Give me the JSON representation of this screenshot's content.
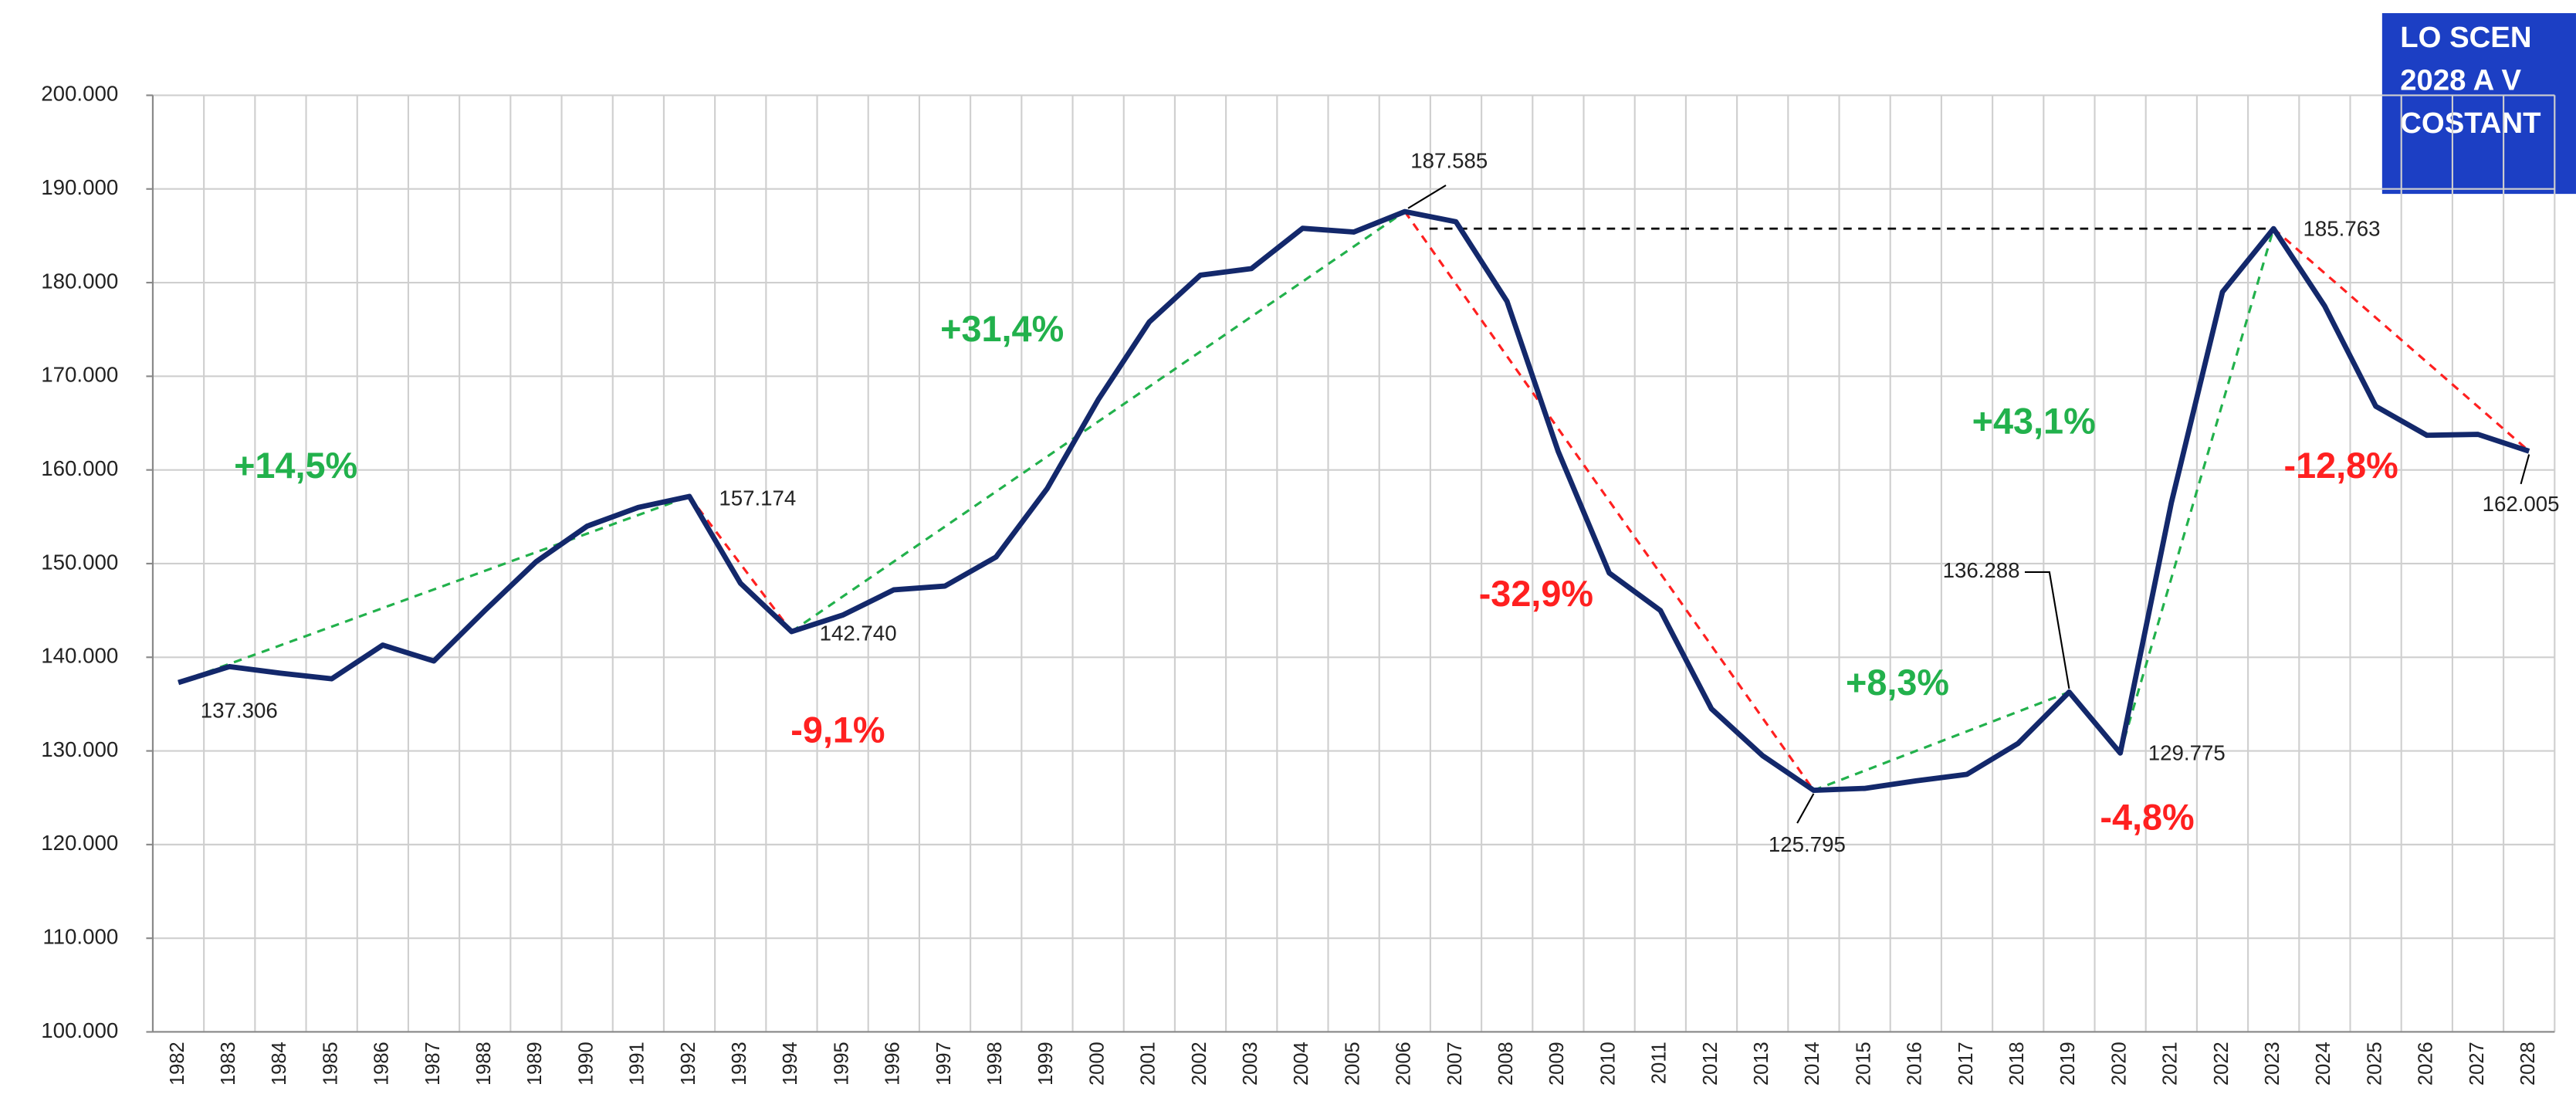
{
  "chart_data": {
    "type": "line",
    "title_lines": [
      "LO SCEN",
      "2028 A V",
      "COSTANT"
    ],
    "title_box_color": "#1c3fc4",
    "categories": [
      "1982",
      "1983",
      "1984",
      "1985",
      "1986",
      "1987",
      "1988",
      "1989",
      "1990",
      "1991",
      "1992",
      "1993",
      "1994",
      "1995",
      "1996",
      "1997",
      "1998",
      "1999",
      "2000",
      "2001",
      "2002",
      "2003",
      "2004",
      "2005",
      "2006",
      "2007",
      "2008",
      "2009",
      "2010",
      "2011",
      "2012",
      "2013",
      "2014",
      "2015",
      "2016",
      "2017",
      "2018",
      "2019",
      "2020",
      "2021",
      "2022",
      "2023",
      "2024",
      "2025",
      "2026",
      "2027",
      "2028"
    ],
    "values": [
      137306,
      139000,
      138300,
      137700,
      141300,
      139600,
      145000,
      150200,
      154000,
      156000,
      157174,
      147900,
      142740,
      144500,
      147200,
      147600,
      150700,
      158000,
      167500,
      175800,
      180800,
      181500,
      185800,
      185400,
      187585,
      186500,
      178000,
      162000,
      149000,
      145000,
      134500,
      129500,
      125795,
      126000,
      126800,
      127500,
      130800,
      136288,
      129775,
      156500,
      179000,
      185763,
      177500,
      166800,
      163700,
      163800,
      162005
    ],
    "value_labels": [
      "137.306",
      null,
      null,
      null,
      null,
      null,
      null,
      null,
      null,
      null,
      "157.174",
      null,
      "142.740",
      null,
      null,
      null,
      null,
      null,
      null,
      null,
      null,
      null,
      null,
      null,
      "187.585",
      null,
      null,
      null,
      null,
      null,
      null,
      null,
      "125.795",
      null,
      null,
      null,
      null,
      "136.288",
      "129.775",
      null,
      null,
      "185.763",
      null,
      null,
      null,
      null,
      "162.005"
    ],
    "color": "#13286b",
    "ylim": [
      100000,
      200000
    ],
    "yticks": [
      {
        "value": 100000,
        "label": "100.000"
      },
      {
        "value": 110000,
        "label": "110.000"
      },
      {
        "value": 120000,
        "label": "120.000"
      },
      {
        "value": 130000,
        "label": "130.000"
      },
      {
        "value": 140000,
        "label": "140.000"
      },
      {
        "value": 150000,
        "label": "150.000"
      },
      {
        "value": 160000,
        "label": "160.000"
      },
      {
        "value": 170000,
        "label": "170.000"
      },
      {
        "value": 180000,
        "label": "180.000"
      },
      {
        "value": 190000,
        "label": "190.000"
      },
      {
        "value": 200000,
        "label": "200.000"
      }
    ],
    "grid": true,
    "trends": [
      {
        "from": "1982",
        "to": "1992",
        "label": "+14,5%",
        "color": "#22b14c"
      },
      {
        "from": "1992",
        "to": "1994",
        "label": "-9,1%",
        "color": "#ff2020"
      },
      {
        "from": "1994",
        "to": "2006",
        "label": "+31,4%",
        "color": "#22b14c"
      },
      {
        "from": "2006",
        "to": "2014",
        "label": "-32,9%",
        "color": "#ff2020"
      },
      {
        "from": "2014",
        "to": "2019",
        "label": "+8,3%",
        "color": "#22b14c"
      },
      {
        "from": "2019",
        "to": "2020",
        "label": "-4,8%",
        "color": "#ff2020"
      },
      {
        "from": "2020",
        "to": "2023",
        "label": "+43,1%",
        "color": "#22b14c"
      },
      {
        "from": "2023",
        "to": "2028",
        "label": "-12,8%",
        "color": "#ff2020"
      }
    ],
    "reference_line": {
      "from": "2006",
      "to": "2023",
      "color": "#000000"
    }
  }
}
